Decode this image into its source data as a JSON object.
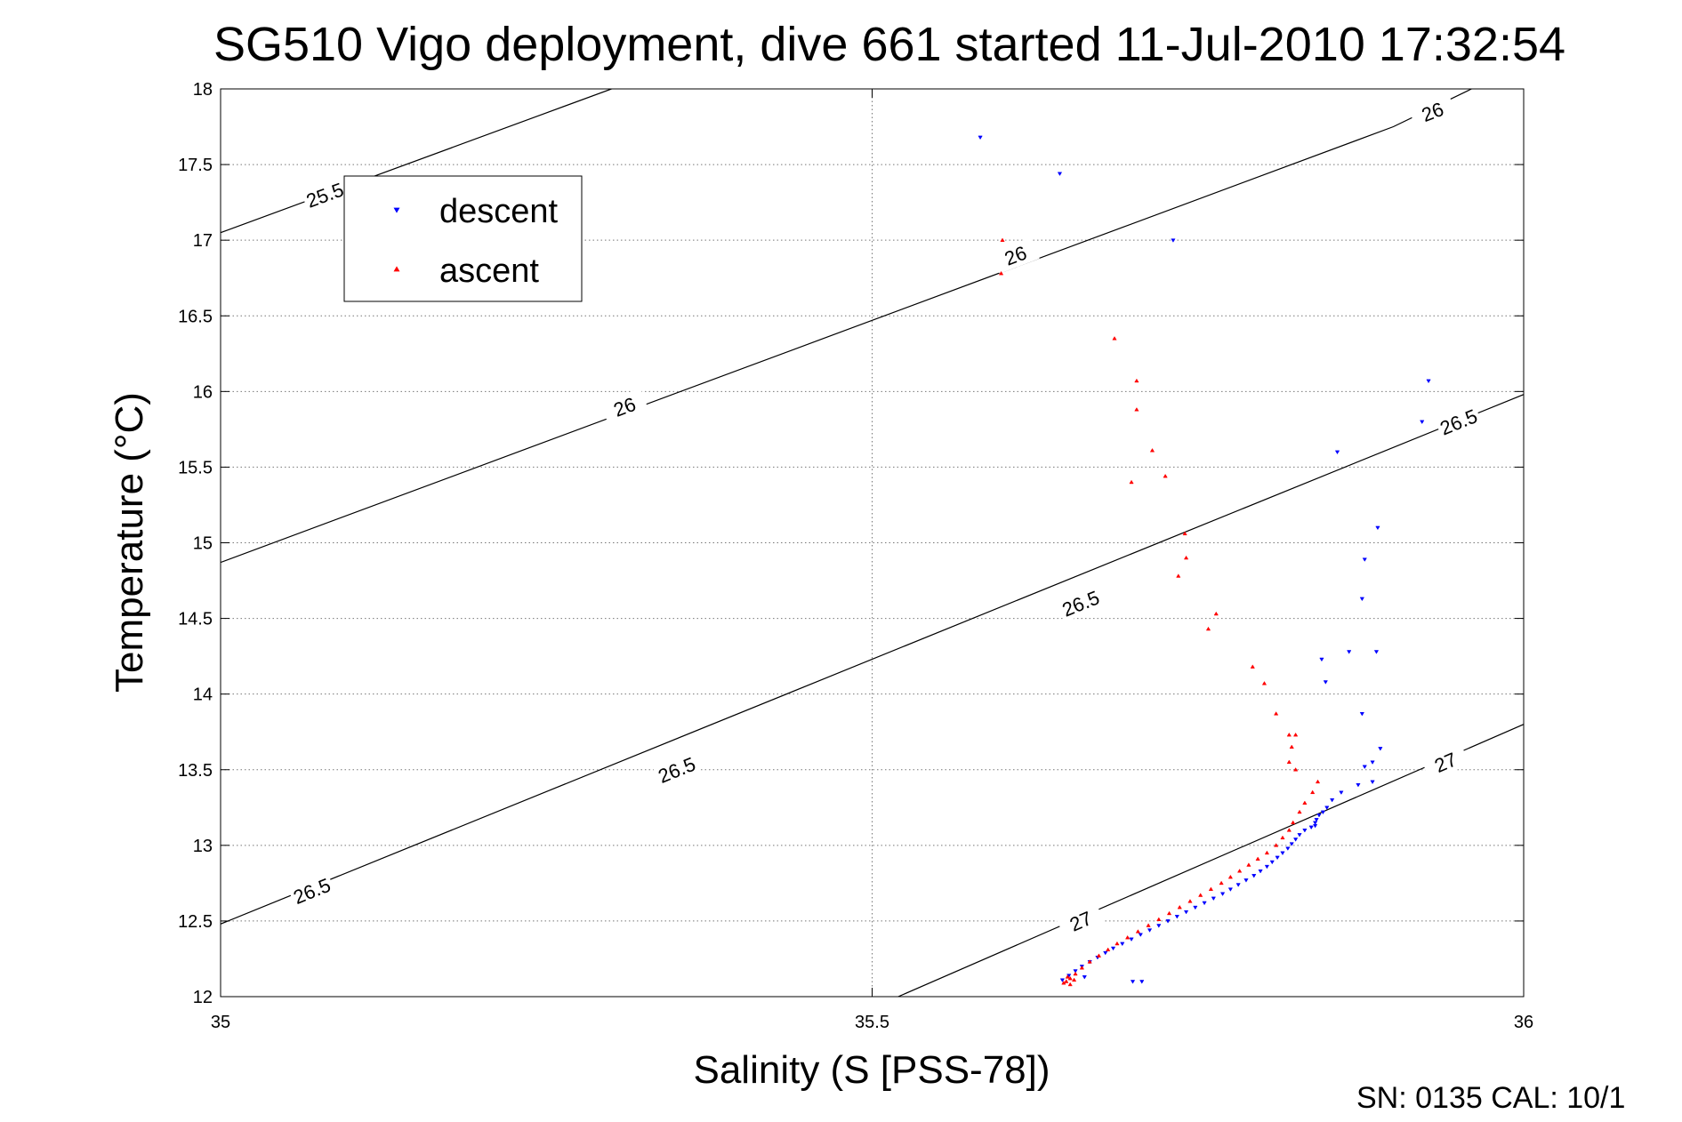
{
  "chart_data": {
    "type": "scatter",
    "title": "SG510 Vigo deployment, dive 661 started 11-Jul-2010 17:32:54",
    "xlabel": "Salinity (S [PSS-78])",
    "ylabel": "Temperature (°C)",
    "xlim": [
      35,
      36
    ],
    "ylim": [
      12,
      18
    ],
    "xticks": [
      "35",
      "35.5",
      "36"
    ],
    "yticks": [
      "12",
      "12.5",
      "13",
      "13.5",
      "14",
      "14.5",
      "15",
      "15.5",
      "16",
      "16.5",
      "17",
      "17.5",
      "18"
    ],
    "grid": true,
    "legend_position": "top-left",
    "footer": "SN: 0135  CAL: 10/1",
    "contours": [
      {
        "label": "25.5",
        "points": [
          [
            35,
            17.05
          ],
          [
            35.3,
            18.0
          ]
        ],
        "label_positions": [
          [
            35.08,
            17.3
          ]
        ]
      },
      {
        "label": "26",
        "points": [
          [
            35,
            14.87
          ],
          [
            35.9,
            17.75
          ],
          [
            35.96,
            18.0
          ]
        ],
        "label_positions": [
          [
            35.31,
            15.9
          ],
          [
            35.61,
            16.9
          ],
          [
            35.93,
            17.85
          ]
        ]
      },
      {
        "label": "26.5",
        "points": [
          [
            35,
            12.48
          ],
          [
            36,
            15.98
          ]
        ],
        "label_positions": [
          [
            35.07,
            12.7
          ],
          [
            35.35,
            13.5
          ],
          [
            35.66,
            14.6
          ],
          [
            35.95,
            15.8
          ]
        ]
      },
      {
        "label": "27",
        "points": [
          [
            35.52,
            12.0
          ],
          [
            36,
            13.8
          ]
        ],
        "label_positions": [
          [
            35.66,
            12.5
          ],
          [
            35.94,
            13.55
          ]
        ]
      }
    ],
    "series": [
      {
        "name": "descent",
        "color": "#0000ff",
        "marker": "triangle-down",
        "points": [
          [
            35.583,
            17.68
          ],
          [
            35.644,
            17.44
          ],
          [
            35.731,
            17.0
          ],
          [
            35.927,
            16.07
          ],
          [
            35.922,
            15.8
          ],
          [
            35.857,
            15.6
          ],
          [
            35.888,
            15.1
          ],
          [
            35.878,
            14.89
          ],
          [
            35.876,
            14.63
          ],
          [
            35.866,
            14.28
          ],
          [
            35.887,
            14.28
          ],
          [
            35.845,
            14.23
          ],
          [
            35.848,
            14.08
          ],
          [
            35.876,
            13.87
          ],
          [
            35.89,
            13.64
          ],
          [
            35.884,
            13.55
          ],
          [
            35.878,
            13.52
          ],
          [
            35.884,
            13.42
          ],
          [
            35.873,
            13.4
          ],
          [
            35.86,
            13.35
          ],
          [
            35.853,
            13.3
          ],
          [
            35.849,
            13.25
          ],
          [
            35.846,
            13.22
          ],
          [
            35.843,
            13.2
          ],
          [
            35.841,
            13.17
          ],
          [
            35.84,
            13.15
          ],
          [
            35.84,
            13.13
          ],
          [
            35.837,
            13.12
          ],
          [
            35.832,
            13.1
          ],
          [
            35.828,
            13.07
          ],
          [
            35.825,
            13.04
          ],
          [
            35.822,
            13.01
          ],
          [
            35.819,
            12.98
          ],
          [
            35.815,
            12.95
          ],
          [
            35.811,
            12.92
          ],
          [
            35.807,
            12.89
          ],
          [
            35.803,
            12.86
          ],
          [
            35.798,
            12.83
          ],
          [
            35.793,
            12.8
          ],
          [
            35.787,
            12.77
          ],
          [
            35.781,
            12.74
          ],
          [
            35.775,
            12.71
          ],
          [
            35.769,
            12.68
          ],
          [
            35.762,
            12.65
          ],
          [
            35.755,
            12.62
          ],
          [
            35.748,
            12.59
          ],
          [
            35.741,
            12.56
          ],
          [
            35.734,
            12.53
          ],
          [
            35.727,
            12.5
          ],
          [
            35.72,
            12.47
          ],
          [
            35.713,
            12.44
          ],
          [
            35.706,
            12.41
          ],
          [
            35.699,
            12.38
          ],
          [
            35.692,
            12.35
          ],
          [
            35.685,
            12.32
          ],
          [
            35.679,
            12.29
          ],
          [
            35.673,
            12.26
          ],
          [
            35.667,
            12.23
          ],
          [
            35.661,
            12.2
          ],
          [
            35.656,
            12.17
          ],
          [
            35.651,
            12.14
          ],
          [
            35.646,
            12.11
          ],
          [
            35.7,
            12.1
          ],
          [
            35.663,
            12.13
          ],
          [
            35.707,
            12.1
          ]
        ]
      },
      {
        "name": "ascent",
        "color": "#ff0000",
        "marker": "triangle-up",
        "points": [
          [
            35.6,
            17.0
          ],
          [
            35.599,
            16.78
          ],
          [
            35.686,
            16.35
          ],
          [
            35.703,
            16.07
          ],
          [
            35.703,
            15.88
          ],
          [
            35.715,
            15.61
          ],
          [
            35.725,
            15.44
          ],
          [
            35.699,
            15.4
          ],
          [
            35.74,
            15.06
          ],
          [
            35.741,
            14.9
          ],
          [
            35.735,
            14.78
          ],
          [
            35.764,
            14.53
          ],
          [
            35.758,
            14.43
          ],
          [
            35.792,
            14.18
          ],
          [
            35.801,
            14.07
          ],
          [
            35.81,
            13.87
          ],
          [
            35.82,
            13.73
          ],
          [
            35.825,
            13.73
          ],
          [
            35.822,
            13.65
          ],
          [
            35.82,
            13.55
          ],
          [
            35.825,
            13.5
          ],
          [
            35.842,
            13.42
          ],
          [
            35.838,
            13.35
          ],
          [
            35.832,
            13.28
          ],
          [
            35.828,
            13.22
          ],
          [
            35.823,
            13.15
          ],
          [
            35.82,
            13.1
          ],
          [
            35.815,
            13.05
          ],
          [
            35.81,
            13.0
          ],
          [
            35.803,
            12.95
          ],
          [
            35.796,
            12.91
          ],
          [
            35.789,
            12.87
          ],
          [
            35.782,
            12.83
          ],
          [
            35.775,
            12.79
          ],
          [
            35.768,
            12.75
          ],
          [
            35.76,
            12.71
          ],
          [
            35.752,
            12.67
          ],
          [
            35.744,
            12.63
          ],
          [
            35.736,
            12.59
          ],
          [
            35.728,
            12.55
          ],
          [
            35.72,
            12.51
          ],
          [
            35.712,
            12.47
          ],
          [
            35.704,
            12.43
          ],
          [
            35.696,
            12.39
          ],
          [
            35.688,
            12.35
          ],
          [
            35.681,
            12.31
          ],
          [
            35.674,
            12.27
          ],
          [
            35.667,
            12.23
          ],
          [
            35.661,
            12.19
          ],
          [
            35.656,
            12.15
          ],
          [
            35.652,
            12.12
          ],
          [
            35.649,
            12.1
          ],
          [
            35.647,
            12.09
          ],
          [
            35.652,
            12.08
          ],
          [
            35.65,
            12.13
          ],
          [
            35.655,
            12.11
          ]
        ]
      }
    ]
  }
}
